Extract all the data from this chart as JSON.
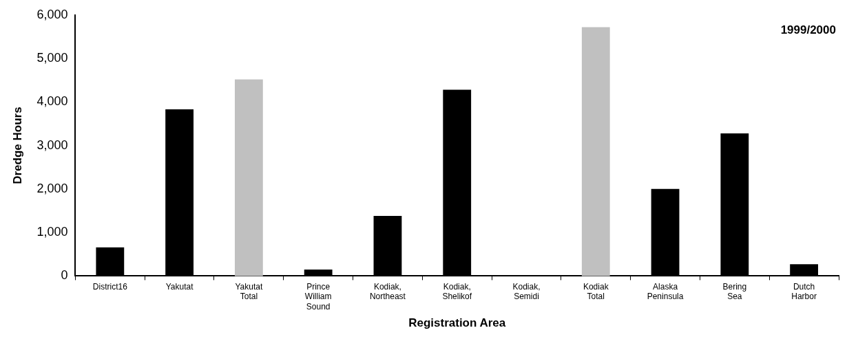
{
  "chart_data": {
    "type": "bar",
    "xlabel": "Registration Area",
    "ylabel": "Dredge Hours",
    "categories": [
      "District16",
      "Yakutat",
      "Yakutat Total",
      "Prince William Sound",
      "Kodiak, Northeast",
      "Kodiak, Shelikof",
      "Kodiak, Semidi",
      "Kodiak Total",
      "Alaska Peninsula",
      "Bering Sea",
      "Dutch Harbor"
    ],
    "values": [
      660,
      3830,
      4520,
      150,
      1380,
      4280,
      20,
      5720,
      2000,
      3280,
      270
    ],
    "colors": [
      "#000000",
      "#000000",
      "#c0c0c0",
      "#000000",
      "#000000",
      "#000000",
      "#000000",
      "#c0c0c0",
      "#000000",
      "#000000",
      "#000000"
    ],
    "ylim": [
      0,
      6000
    ],
    "yticks": [
      0,
      {
        "value": 1000,
        "label": "1,000"
      },
      {
        "value": 2000,
        "label": "2,000"
      },
      {
        "value": 3000,
        "label": "3,000"
      },
      {
        "value": 4000,
        "label": "4,000"
      },
      {
        "value": 5000,
        "label": "5,000"
      },
      {
        "value": 6000,
        "label": "6,000"
      }
    ],
    "grid": false,
    "legend": false,
    "annotations": [
      "1999/2000"
    ]
  }
}
